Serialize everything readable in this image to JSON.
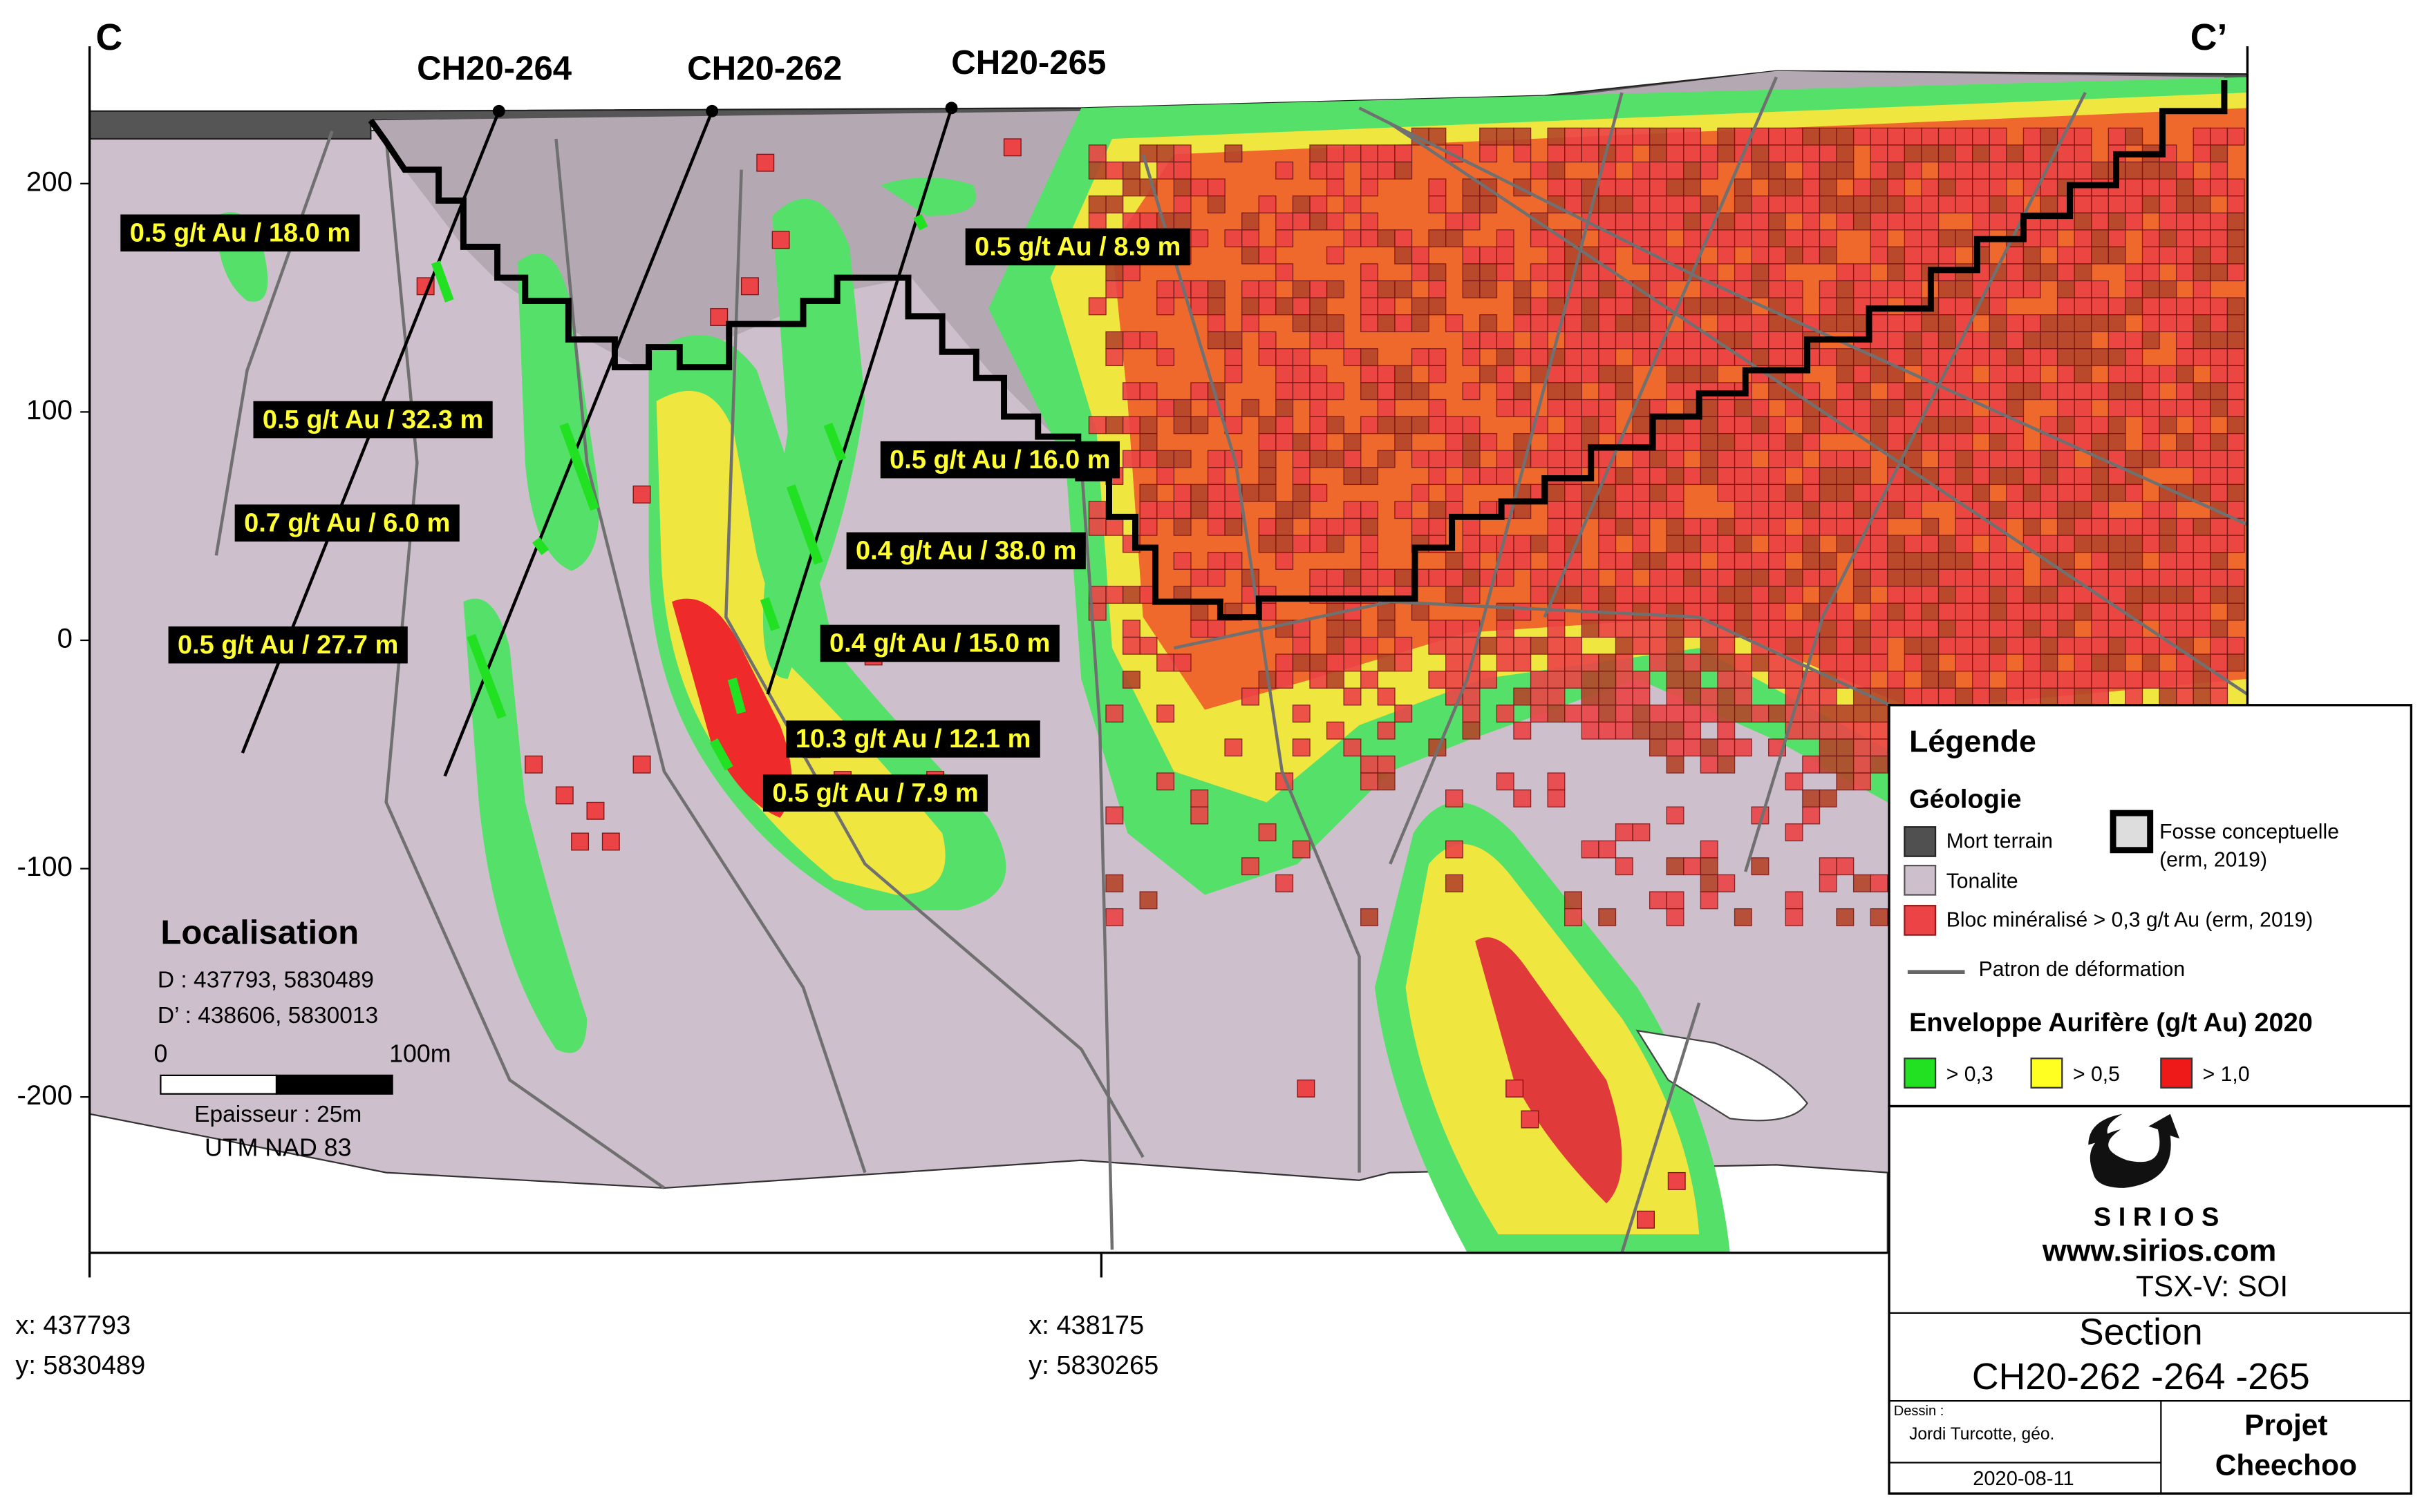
{
  "section": {
    "start": "C",
    "end": "C’"
  },
  "drill_holes": [
    "CH20-264",
    "CH20-262",
    "CH20-265"
  ],
  "intercepts": [
    "0.5 g/t Au / 18.0 m",
    "0.5 g/t Au / 8.9 m",
    "0.5 g/t Au / 32.3 m",
    "0.5 g/t Au / 16.0 m",
    "0.7 g/t Au / 6.0 m",
    "0.4 g/t Au / 38.0 m",
    "0.5 g/t Au / 27.7 m",
    "0.4 g/t Au / 15.0 m",
    "10.3 g/t Au / 12.1 m",
    "0.5 g/t Au / 7.9 m"
  ],
  "elevation_axis": {
    "ticks": [
      200,
      100,
      0,
      -100,
      -200
    ]
  },
  "coordinates": [
    {
      "x": "x: 437793",
      "y": "y: 5830489"
    },
    {
      "x": "x: 438175",
      "y": "y: 5830265"
    }
  ],
  "localisation": {
    "title": "Localisation",
    "d": "D : 437793, 5830489",
    "d_prime": "D’ : 438606, 5830013",
    "scale_start": "0",
    "scale_end": "100m",
    "thickness": "Epaisseur : 25m",
    "datum": "UTM NAD 83"
  },
  "legend": {
    "title": "Légende",
    "geology_title": "Géologie",
    "overburden": "Mort terrain",
    "tonalite": "Tonalite",
    "block": "Bloc minéralisé > 0,3 g/t Au (erm, 2019)",
    "pit": "Fosse conceptuelle",
    "pit_source": "(erm, 2019)",
    "deformation": "Patron de déformation",
    "envelope_title": "Enveloppe Aurifère (g/t Au) 2020",
    "envelopes": [
      "> 0,3",
      "> 0,5",
      "> 1,0"
    ]
  },
  "title_block": {
    "company": "S I R I O S",
    "website": "www.sirios.com",
    "ticker": "TSX-V: SOI",
    "section_label": "Section",
    "section_name": "CH20-262 -264 -265",
    "drawn_by_label": "Dessin :",
    "drawn_by": "Jordi Turcotte, géo.",
    "date": "2020-08-11",
    "project_label": "Projet",
    "project_name": "Cheechoo"
  }
}
